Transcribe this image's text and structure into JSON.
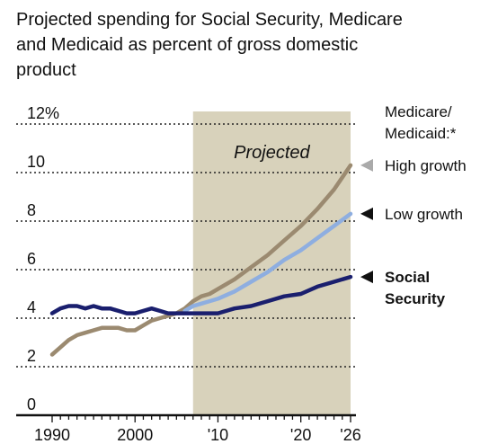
{
  "chart_data": {
    "type": "line",
    "title": [
      "Projected spending for Social Security, Medicare",
      "and Medicaid as percent of gross domestic",
      "product"
    ],
    "x_ticks": [
      {
        "x": 1990,
        "label": "1990"
      },
      {
        "x": 2000,
        "label": "2000"
      },
      {
        "x": 2010,
        "label": "'10"
      },
      {
        "x": 2020,
        "label": "'20"
      },
      {
        "x": 2026,
        "label": "'26"
      }
    ],
    "y_ticks": [
      {
        "y": 0,
        "label": "0"
      },
      {
        "y": 2,
        "label": "2"
      },
      {
        "y": 4,
        "label": "4"
      },
      {
        "y": 6,
        "label": "6"
      },
      {
        "y": 8,
        "label": "8"
      },
      {
        "y": 10,
        "label": "10"
      },
      {
        "y": 12,
        "label": "12%"
      }
    ],
    "xlim": [
      1990,
      2026
    ],
    "ylim": [
      0,
      12
    ],
    "projected_region": {
      "start": 2007,
      "end": 2026,
      "label": "Projected",
      "color": "#d8d2bb"
    },
    "legend_heading": [
      "Medicare/",
      "Medicaid:*"
    ],
    "series": [
      {
        "id": "high",
        "legend": [
          "High growth"
        ],
        "color": "#9b8a70",
        "marker_color": "#aaaaaa",
        "label_bold": false,
        "x": [
          1990,
          1991,
          1992,
          1993,
          1994,
          1995,
          1996,
          1997,
          1998,
          1999,
          2000,
          2001,
          2002,
          2003,
          2004,
          2005,
          2006,
          2007,
          2008,
          2009,
          2010,
          2012,
          2014,
          2016,
          2018,
          2020,
          2022,
          2024,
          2026
        ],
        "y": [
          2.5,
          2.8,
          3.1,
          3.3,
          3.4,
          3.5,
          3.6,
          3.6,
          3.6,
          3.5,
          3.5,
          3.7,
          3.9,
          4.0,
          4.1,
          4.2,
          4.4,
          4.7,
          4.9,
          5.0,
          5.2,
          5.6,
          6.1,
          6.6,
          7.2,
          7.8,
          8.5,
          9.3,
          10.3
        ]
      },
      {
        "id": "low",
        "legend": [
          "Low growth"
        ],
        "color": "#8eaee0",
        "marker_color": "#111111",
        "label_bold": false,
        "x": [
          2006,
          2007,
          2008,
          2009,
          2010,
          2012,
          2014,
          2016,
          2018,
          2020,
          2022,
          2024,
          2026
        ],
        "y": [
          4.3,
          4.5,
          4.6,
          4.7,
          4.8,
          5.1,
          5.5,
          5.9,
          6.4,
          6.8,
          7.3,
          7.8,
          8.3
        ]
      },
      {
        "id": "ss",
        "legend": [
          "Social",
          "Security"
        ],
        "color": "#1a1f6e",
        "marker_color": "#111111",
        "label_bold": true,
        "x": [
          1990,
          1991,
          1992,
          1993,
          1994,
          1995,
          1996,
          1997,
          1998,
          1999,
          2000,
          2001,
          2002,
          2003,
          2004,
          2005,
          2006,
          2007,
          2008,
          2009,
          2010,
          2012,
          2014,
          2016,
          2018,
          2020,
          2022,
          2024,
          2026
        ],
        "y": [
          4.2,
          4.4,
          4.5,
          4.5,
          4.4,
          4.5,
          4.4,
          4.4,
          4.3,
          4.2,
          4.2,
          4.3,
          4.4,
          4.3,
          4.2,
          4.2,
          4.2,
          4.2,
          4.2,
          4.2,
          4.2,
          4.4,
          4.5,
          4.7,
          4.9,
          5.0,
          5.3,
          5.5,
          5.7
        ]
      }
    ],
    "grid": "dotted",
    "legend_position": "right"
  }
}
